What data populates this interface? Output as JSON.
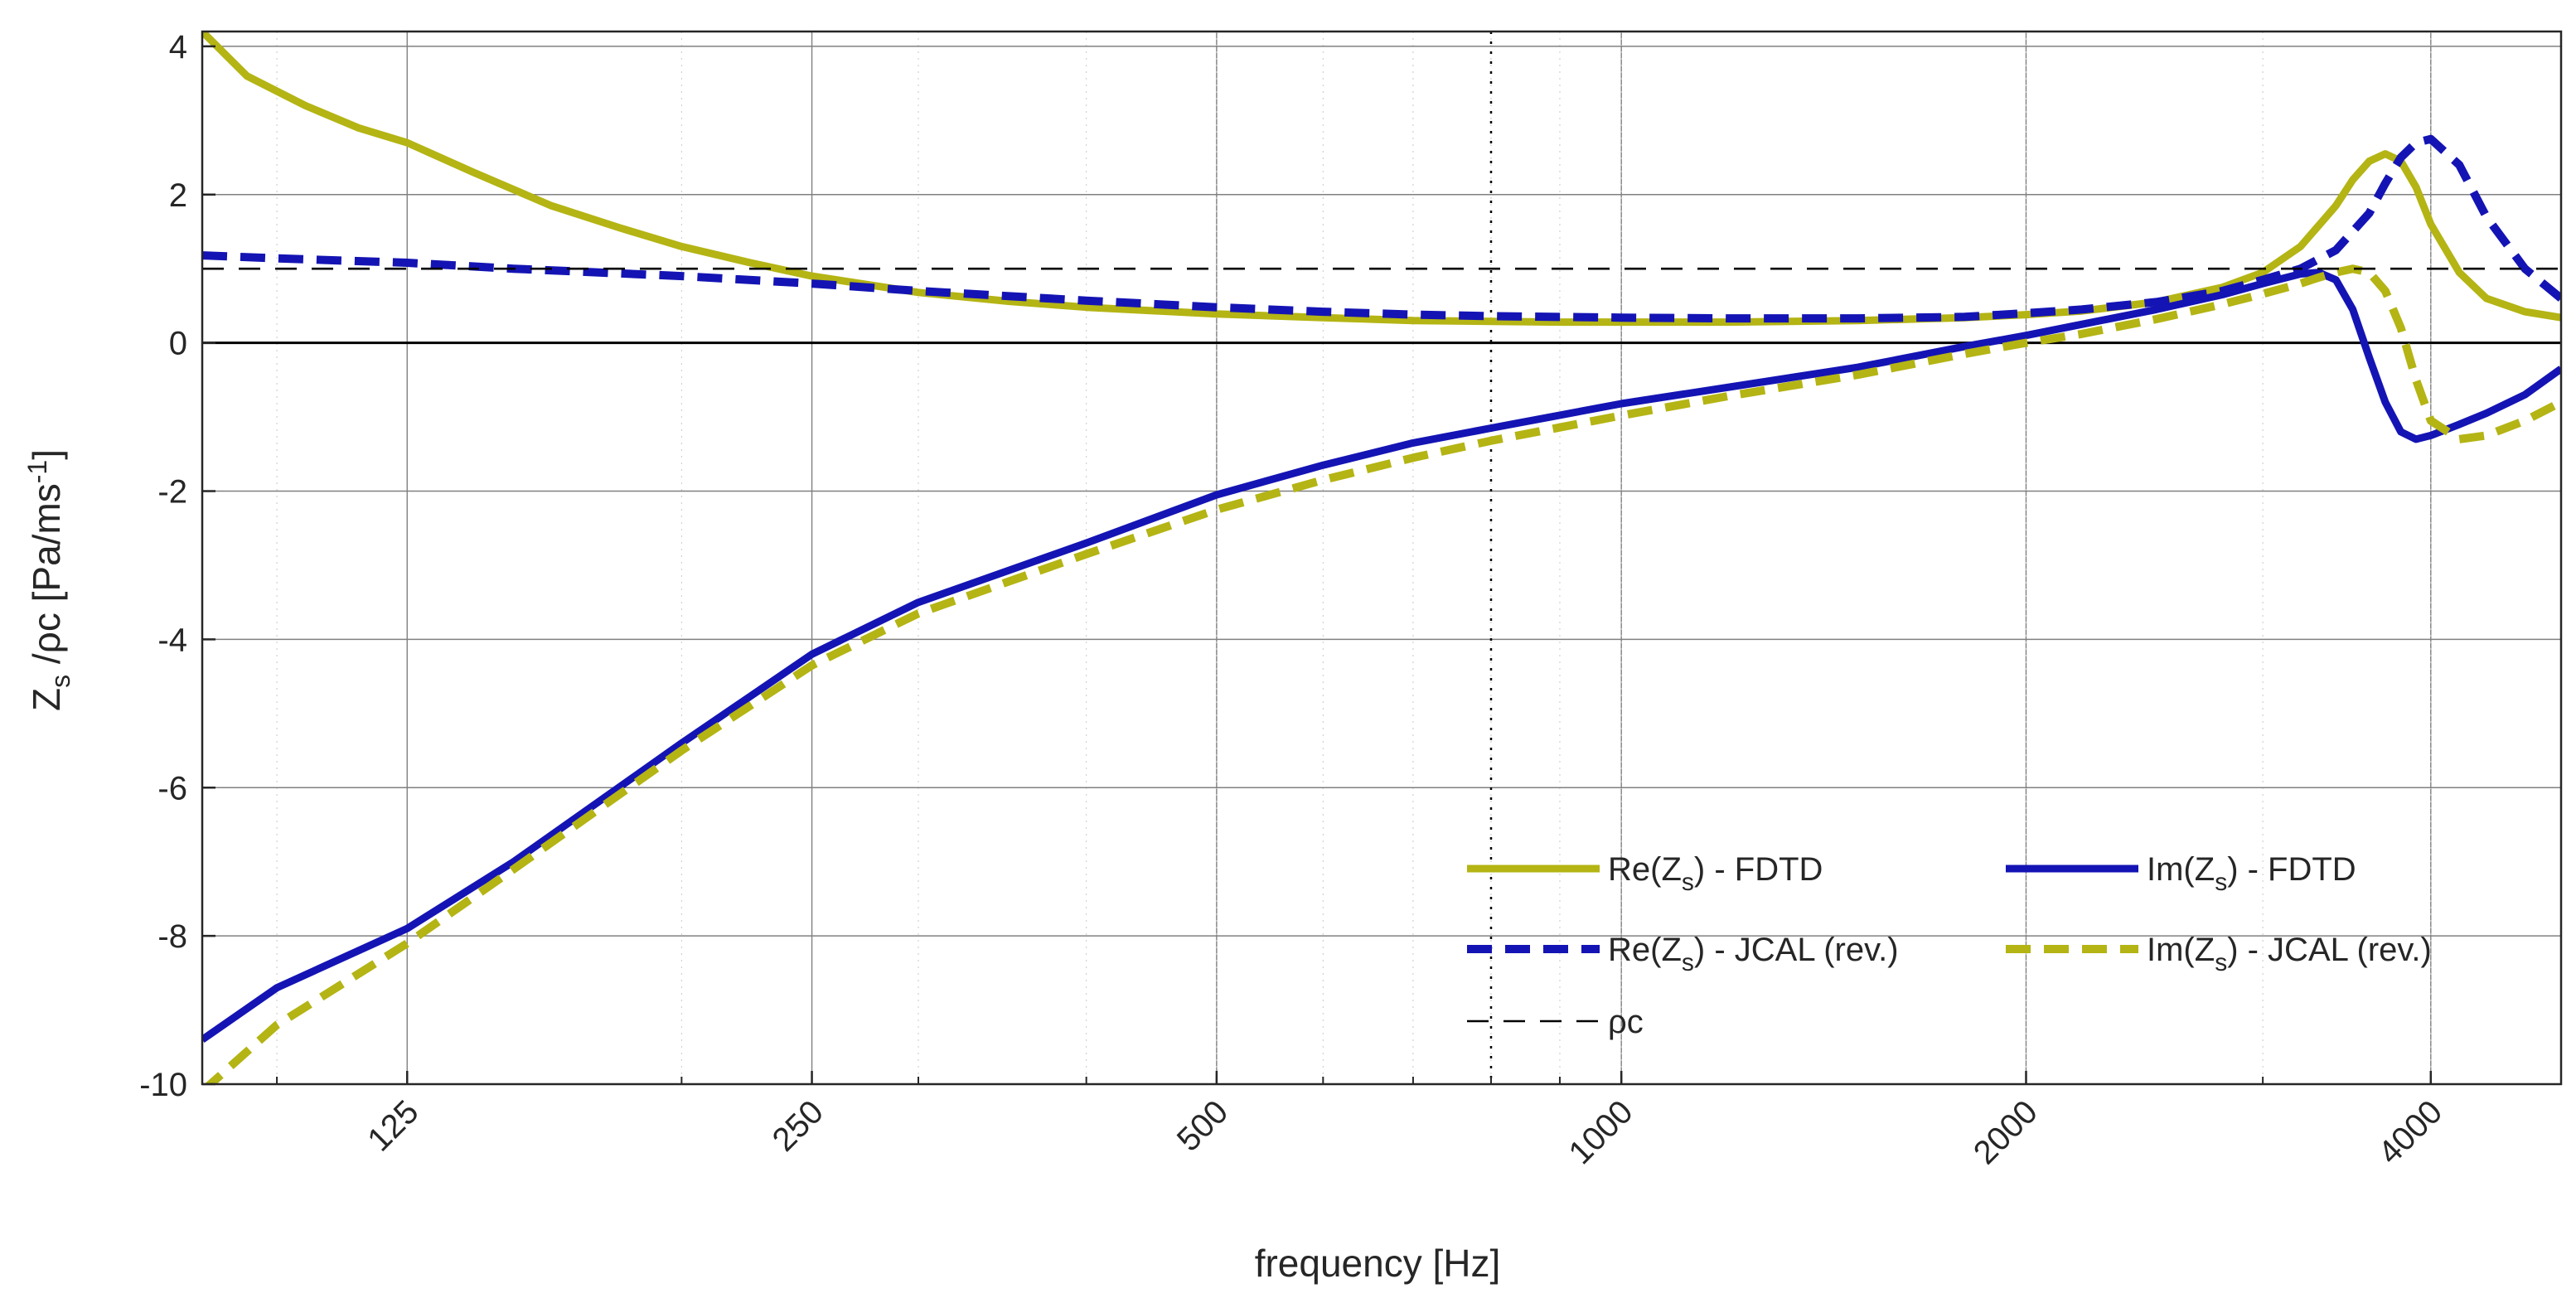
{
  "chart_data": {
    "type": "line",
    "title": "",
    "xlabel": "frequency [Hz]",
    "ylabel": "Z_s /ρc [Pa/ms^-1]",
    "xscale": "log",
    "xlim": [
      88,
      5000
    ],
    "ylim": [
      -10,
      4.2
    ],
    "xticks": [
      125,
      250,
      500,
      1000,
      2000,
      4000
    ],
    "xtick_labels": [
      "125",
      "250",
      "500",
      "1000",
      "2000",
      "4000"
    ],
    "yticks": [
      -10,
      -8,
      -6,
      -4,
      -2,
      0,
      2,
      4
    ],
    "ytick_labels": [
      "-10",
      "-8",
      "-6",
      "-4",
      "-2",
      "0",
      "2",
      "4"
    ],
    "grid": true,
    "reference_lines": {
      "zero_line": 0,
      "rho_c_line": 1,
      "vertical_dotted_frequency": 800
    },
    "legend_position": "lower-right",
    "colors": {
      "olive": "#b4b414",
      "blue": "#1414b4",
      "black": "#000000",
      "grid": "#808080"
    },
    "series": [
      {
        "name": "Re(Zs) - FDTD",
        "label_parts": [
          "Re(Z",
          "s",
          ") - FDTD"
        ],
        "color": "#b4b414",
        "dash": "solid",
        "x": [
          88,
          95,
          105,
          115,
          125,
          140,
          160,
          180,
          200,
          225,
          250,
          300,
          350,
          400,
          500,
          600,
          700,
          800,
          900,
          1000,
          1200,
          1500,
          1800,
          2000,
          2200,
          2500,
          2800,
          3000,
          3200,
          3400,
          3500,
          3600,
          3700,
          3800,
          3900,
          4000,
          4200,
          4400,
          4700,
          5000
        ],
        "y": [
          4.2,
          3.6,
          3.2,
          2.9,
          2.7,
          2.3,
          1.85,
          1.55,
          1.3,
          1.08,
          0.9,
          0.68,
          0.56,
          0.48,
          0.39,
          0.34,
          0.3,
          0.29,
          0.28,
          0.28,
          0.28,
          0.3,
          0.34,
          0.38,
          0.43,
          0.55,
          0.75,
          0.95,
          1.3,
          1.85,
          2.2,
          2.45,
          2.55,
          2.45,
          2.1,
          1.6,
          0.95,
          0.6,
          0.42,
          0.34
        ]
      },
      {
        "name": "Re(Zs) - JCAL (rev.)",
        "label_parts": [
          "Re(Z",
          "s",
          ") - JCAL (rev.)"
        ],
        "color": "#1414b4",
        "dash": "dashed",
        "x": [
          88,
          100,
          125,
          150,
          200,
          250,
          300,
          400,
          500,
          600,
          700,
          800,
          1000,
          1200,
          1500,
          1800,
          2000,
          2200,
          2500,
          2800,
          3000,
          3200,
          3400,
          3600,
          3700,
          3800,
          3900,
          4000,
          4200,
          4400,
          4700,
          5000
        ],
        "y": [
          1.18,
          1.14,
          1.08,
          1.0,
          0.9,
          0.8,
          0.7,
          0.57,
          0.48,
          0.42,
          0.38,
          0.36,
          0.34,
          0.33,
          0.33,
          0.35,
          0.4,
          0.45,
          0.55,
          0.7,
          0.85,
          1.0,
          1.25,
          1.75,
          2.15,
          2.5,
          2.7,
          2.75,
          2.4,
          1.7,
          1.0,
          0.6
        ]
      },
      {
        "name": "Im(Zs) - FDTD",
        "label_parts": [
          "Im(Z",
          "s",
          ") - FDTD"
        ],
        "color": "#1414b4",
        "dash": "solid",
        "x": [
          88,
          100,
          125,
          150,
          200,
          250,
          300,
          400,
          500,
          600,
          700,
          800,
          1000,
          1200,
          1500,
          1800,
          2000,
          2200,
          2500,
          2800,
          3000,
          3200,
          3300,
          3400,
          3500,
          3600,
          3700,
          3800,
          3900,
          4000,
          4200,
          4400,
          4700,
          5000
        ],
        "y": [
          -9.4,
          -8.7,
          -7.9,
          -7.0,
          -5.4,
          -4.2,
          -3.5,
          -2.7,
          -2.05,
          -1.65,
          -1.35,
          -1.15,
          -0.82,
          -0.6,
          -0.33,
          -0.05,
          0.1,
          0.25,
          0.45,
          0.65,
          0.8,
          0.93,
          0.95,
          0.85,
          0.45,
          -0.2,
          -0.8,
          -1.2,
          -1.3,
          -1.25,
          -1.1,
          -0.95,
          -0.7,
          -0.35
        ]
      },
      {
        "name": "Im(Zs) - JCAL (rev.)",
        "label_parts": [
          "Im(Z",
          "s",
          ") - JCAL (rev.)"
        ],
        "color": "#b4b414",
        "dash": "dashed",
        "x": [
          88,
          100,
          125,
          150,
          200,
          250,
          300,
          400,
          500,
          600,
          700,
          800,
          1000,
          1200,
          1500,
          1800,
          2000,
          2200,
          2500,
          2800,
          3000,
          3200,
          3300,
          3400,
          3500,
          3600,
          3700,
          3800,
          3900,
          4000,
          4200,
          4400,
          4700,
          5000
        ],
        "y": [
          -10.1,
          -9.2,
          -8.1,
          -7.1,
          -5.5,
          -4.35,
          -3.65,
          -2.85,
          -2.25,
          -1.85,
          -1.55,
          -1.32,
          -0.98,
          -0.72,
          -0.43,
          -0.15,
          0.0,
          0.12,
          0.32,
          0.52,
          0.66,
          0.8,
          0.88,
          0.95,
          1.0,
          0.95,
          0.7,
          0.2,
          -0.5,
          -1.05,
          -1.3,
          -1.25,
          -1.05,
          -0.8
        ]
      },
      {
        "name": "ρc",
        "label_parts": [
          "ρc",
          "",
          ""
        ],
        "color": "#000000",
        "dash": "dashed-thin",
        "x": [
          88,
          5000
        ],
        "y": [
          1,
          1
        ]
      }
    ]
  }
}
